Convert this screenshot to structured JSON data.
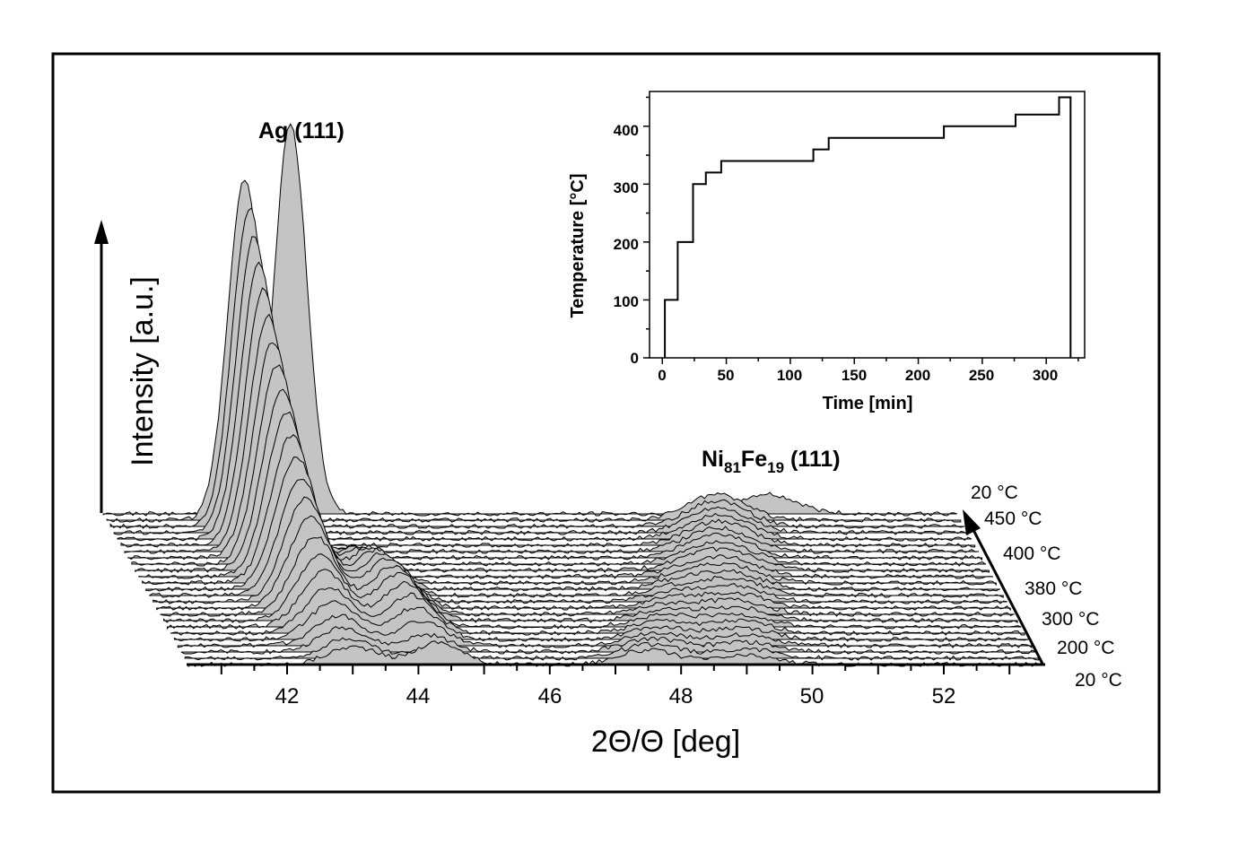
{
  "chart_data": [
    {
      "type": "area",
      "xlabel": "2Θ/Θ [deg]",
      "ylabel": "Intensity [a.u.]",
      "xlim": [
        40.5,
        53.5
      ],
      "xticks": [
        "42",
        "44",
        "46",
        "48",
        "50",
        "52"
      ],
      "annotations": [
        {
          "text": "Ag (111)"
        },
        {
          "text": "Ni",
          "sub1": "81",
          "mid": "Fe",
          "sub2": "19",
          "tail": " (111)"
        }
      ],
      "temperature_labels": [
        "20 °C",
        "200 °C",
        "300 °C",
        "380 °C",
        "400 °C",
        "450 °C",
        "20 °C"
      ],
      "series_count": 25,
      "peaks": {
        "ag": {
          "first_position": 43.0,
          "last_position": 42.6,
          "final_position": 43.35
        },
        "nife": {
          "first_position": 49.0,
          "last_position": 49.8,
          "final_position": 50.6
        }
      }
    },
    {
      "type": "line",
      "step": true,
      "xlabel": "Time [min]",
      "ylabel": "Temperature [°C]",
      "xlim": [
        -10,
        330
      ],
      "ylim": [
        0,
        460
      ],
      "xticks": [
        "0",
        "50",
        "100",
        "150",
        "200",
        "250",
        "300"
      ],
      "yticks": [
        "0",
        "100",
        "200",
        "300",
        "400"
      ],
      "x": [
        2,
        2,
        12,
        12,
        24,
        24,
        34,
        34,
        46,
        46,
        118,
        118,
        130,
        130,
        220,
        220,
        276,
        276,
        310,
        310,
        319,
        319
      ],
      "y": [
        0,
        100,
        100,
        200,
        200,
        300,
        300,
        320,
        320,
        340,
        340,
        360,
        360,
        380,
        380,
        400,
        400,
        420,
        420,
        450,
        450,
        0
      ]
    }
  ]
}
